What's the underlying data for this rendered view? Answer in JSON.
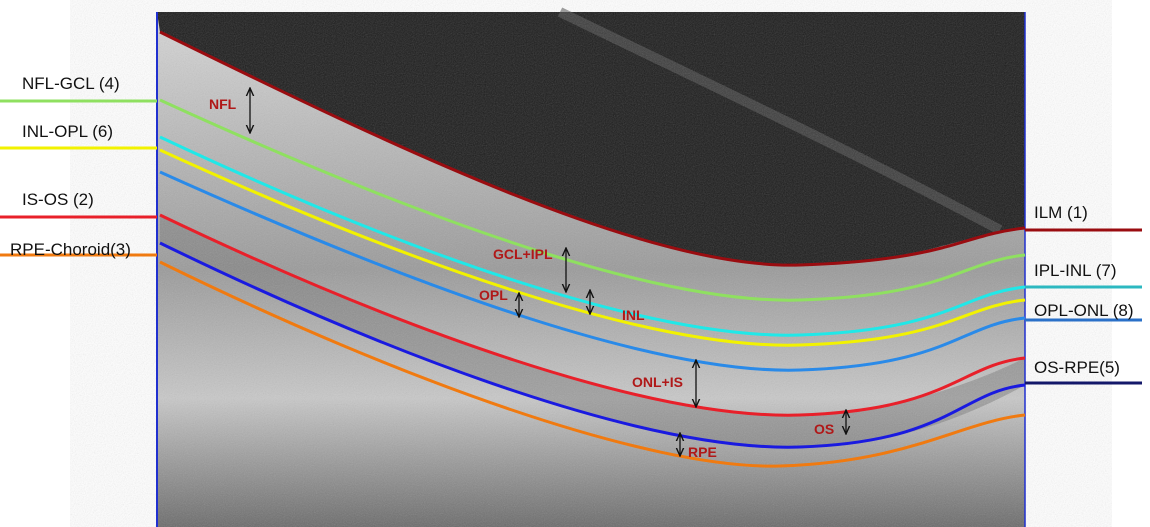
{
  "boundaries_left": [
    {
      "label": "NFL-GCL (4)",
      "color": "#8fe060"
    },
    {
      "label": "INL-OPL (6)",
      "color": "#f2f200"
    },
    {
      "label": "IS-OS (2)",
      "color": "#e8202a"
    },
    {
      "label": "RPE-Choroid(3)",
      "color": "#f07a10"
    }
  ],
  "boundaries_right": [
    {
      "label": "ILM (1)",
      "color": "#9a0c10"
    },
    {
      "label": "IPL-INL (7)",
      "color": "#2cb8c0"
    },
    {
      "label": "OPL-ONL (8)",
      "color": "#2a70c8"
    },
    {
      "label": "OS-RPE(5)",
      "color": "#14186a"
    }
  ],
  "layers": [
    "NFL",
    "GCL+IPL",
    "OPL",
    "INL",
    "ONL+IS",
    "OS",
    "RPE"
  ]
}
